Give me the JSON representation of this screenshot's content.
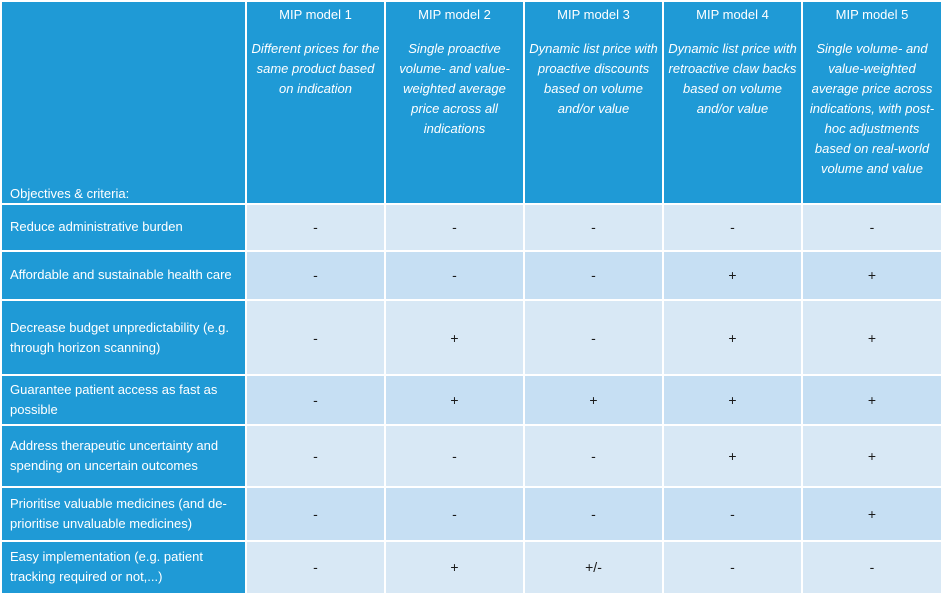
{
  "header": {
    "corner_label": "Objectives & criteria:",
    "models": [
      {
        "name": "MIP model 1",
        "description": "Different prices for the same product based on indication"
      },
      {
        "name": "MIP model 2",
        "description": "Single proactive volume- and value-weighted average price across all indications"
      },
      {
        "name": "MIP model 3",
        "description": "Dynamic list price with proactive discounts based on volume and/or value"
      },
      {
        "name": "MIP model 4",
        "description": "Dynamic list price with retroactive claw backs based on volume and/or value"
      },
      {
        "name": "MIP model 5",
        "description": "Single volume- and value-weighted average price across indications, with post-hoc adjustments based on real-world volume and value"
      }
    ]
  },
  "rows": [
    {
      "criterion": "Reduce administrative burden",
      "values": [
        "-",
        "-",
        "-",
        "-",
        "-"
      ]
    },
    {
      "criterion": "Affordable and sustainable health care",
      "values": [
        "-",
        "-",
        "-",
        "+",
        "+"
      ]
    },
    {
      "criterion": "Decrease budget unpredictability (e.g. through horizon scanning)",
      "values": [
        "-",
        "+",
        "-",
        "+",
        "+"
      ]
    },
    {
      "criterion": "Guarantee patient access as fast as possible",
      "values": [
        "-",
        "+",
        "+",
        "+",
        "+"
      ]
    },
    {
      "criterion": "Address therapeutic uncertainty and spending on uncertain outcomes",
      "values": [
        "-",
        "-",
        "-",
        "+",
        "+"
      ]
    },
    {
      "criterion": "Prioritise valuable medicines (and de-prioritise unvaluable medicines)",
      "values": [
        "-",
        "-",
        "-",
        "-",
        "+"
      ]
    },
    {
      "criterion": "Easy implementation (e.g. patient tracking required or not,...)",
      "values": [
        "-",
        "+",
        "+/-",
        "-",
        "-"
      ]
    }
  ]
}
